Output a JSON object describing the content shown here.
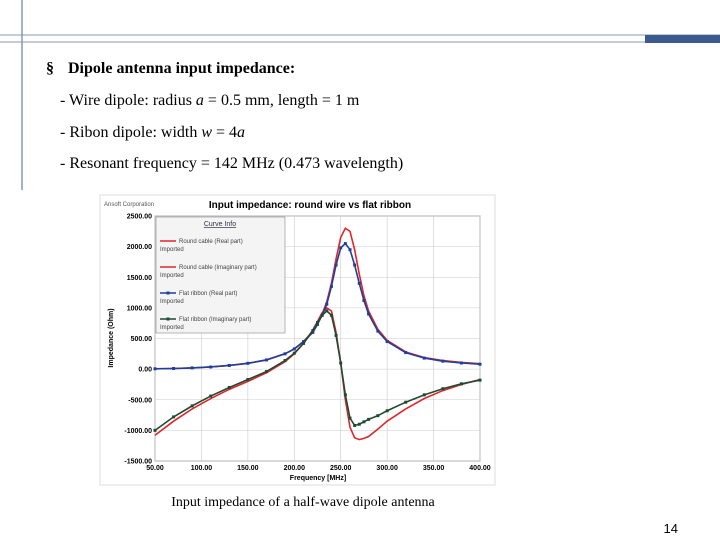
{
  "slide": {
    "heading": "Dipole antenna input impedance:",
    "bullet_symbol": "§",
    "items": [
      [
        "- Wire dipole: radius ",
        "a",
        " = 0.5 mm, length = 1 m"
      ],
      [
        "- Ribon dipole: width ",
        "w",
        " = 4",
        "a"
      ],
      [
        "- Resonant frequency = 142 MHz (0.473 wavelength)"
      ]
    ],
    "caption": "Input impedance of a half-wave dipole antenna",
    "page_number": "14"
  },
  "chart_data": {
    "type": "line",
    "title": "Input impedance: round wire vs flat ribbon",
    "company": "Ansoft Corporation",
    "xlabel": "Frequency [MHz]",
    "ylabel": "Impedance (Ohm)",
    "legend_title": "Curve Info",
    "grid": true,
    "x": [
      50,
      70,
      90,
      110,
      130,
      150,
      170,
      190,
      200,
      210,
      220,
      225,
      230,
      235,
      240,
      245,
      250,
      255,
      260,
      265,
      270,
      275,
      280,
      290,
      300,
      320,
      340,
      360,
      380,
      400
    ],
    "xlim": [
      50,
      400
    ],
    "ylim": [
      -1500,
      2500
    ],
    "xticks": [
      {
        "value": 50,
        "label": "50.00"
      },
      {
        "value": 100,
        "label": "100.00"
      },
      {
        "value": 150,
        "label": "150.00"
      },
      {
        "value": 200,
        "label": "200.00"
      },
      {
        "value": 250,
        "label": "250.00"
      },
      {
        "value": 300,
        "label": "300.00"
      },
      {
        "value": 350,
        "label": "350.00"
      },
      {
        "value": 400,
        "label": "400.00"
      }
    ],
    "yticks": [
      {
        "value": -1500,
        "label": "-1500.00"
      },
      {
        "value": -1000,
        "label": "-1000.00"
      },
      {
        "value": -500,
        "label": "-500.00"
      },
      {
        "value": 0,
        "label": "0.00"
      },
      {
        "value": 500,
        "label": "500.00"
      },
      {
        "value": 1000,
        "label": "1000.00"
      },
      {
        "value": 1500,
        "label": "1500.00"
      },
      {
        "value": 2000,
        "label": "2000.00"
      },
      {
        "value": 2500,
        "label": "2500.00"
      }
    ],
    "series": [
      {
        "name": "Round cable (Real part)",
        "source": "Imported",
        "color": "#e0262b",
        "marker": false,
        "values": [
          5,
          10,
          20,
          35,
          60,
          95,
          150,
          250,
          330,
          450,
          620,
          750,
          900,
          1100,
          1400,
          1800,
          2150,
          2300,
          2250,
          1950,
          1550,
          1200,
          950,
          650,
          470,
          280,
          190,
          140,
          110,
          90
        ]
      },
      {
        "name": "Round cable (Imaginary part)",
        "source": "Imported",
        "color": "#e0262b",
        "marker": false,
        "values": [
          -1080,
          -850,
          -650,
          -480,
          -330,
          -200,
          -60,
          120,
          250,
          420,
          640,
          780,
          920,
          1000,
          950,
          600,
          100,
          -500,
          -950,
          -1120,
          -1150,
          -1130,
          -1100,
          -980,
          -850,
          -650,
          -480,
          -350,
          -250,
          -170
        ]
      },
      {
        "name": "Flat ribbon (Real part)",
        "source": "Imported",
        "color": "#1f3f9a",
        "marker": true,
        "values": [
          5,
          10,
          20,
          35,
          60,
          95,
          150,
          250,
          330,
          450,
          600,
          730,
          880,
          1060,
          1350,
          1700,
          1980,
          2050,
          1950,
          1700,
          1400,
          1120,
          900,
          620,
          450,
          270,
          180,
          130,
          100,
          80
        ]
      },
      {
        "name": "Flat ribbon (Imaginary part)",
        "source": "Imported",
        "color": "#1f4a33",
        "marker": true,
        "values": [
          -1000,
          -780,
          -600,
          -440,
          -300,
          -170,
          -40,
          140,
          260,
          420,
          630,
          760,
          880,
          950,
          880,
          550,
          100,
          -420,
          -800,
          -920,
          -900,
          -860,
          -820,
          -760,
          -680,
          -540,
          -420,
          -320,
          -240,
          -180
        ]
      }
    ]
  }
}
